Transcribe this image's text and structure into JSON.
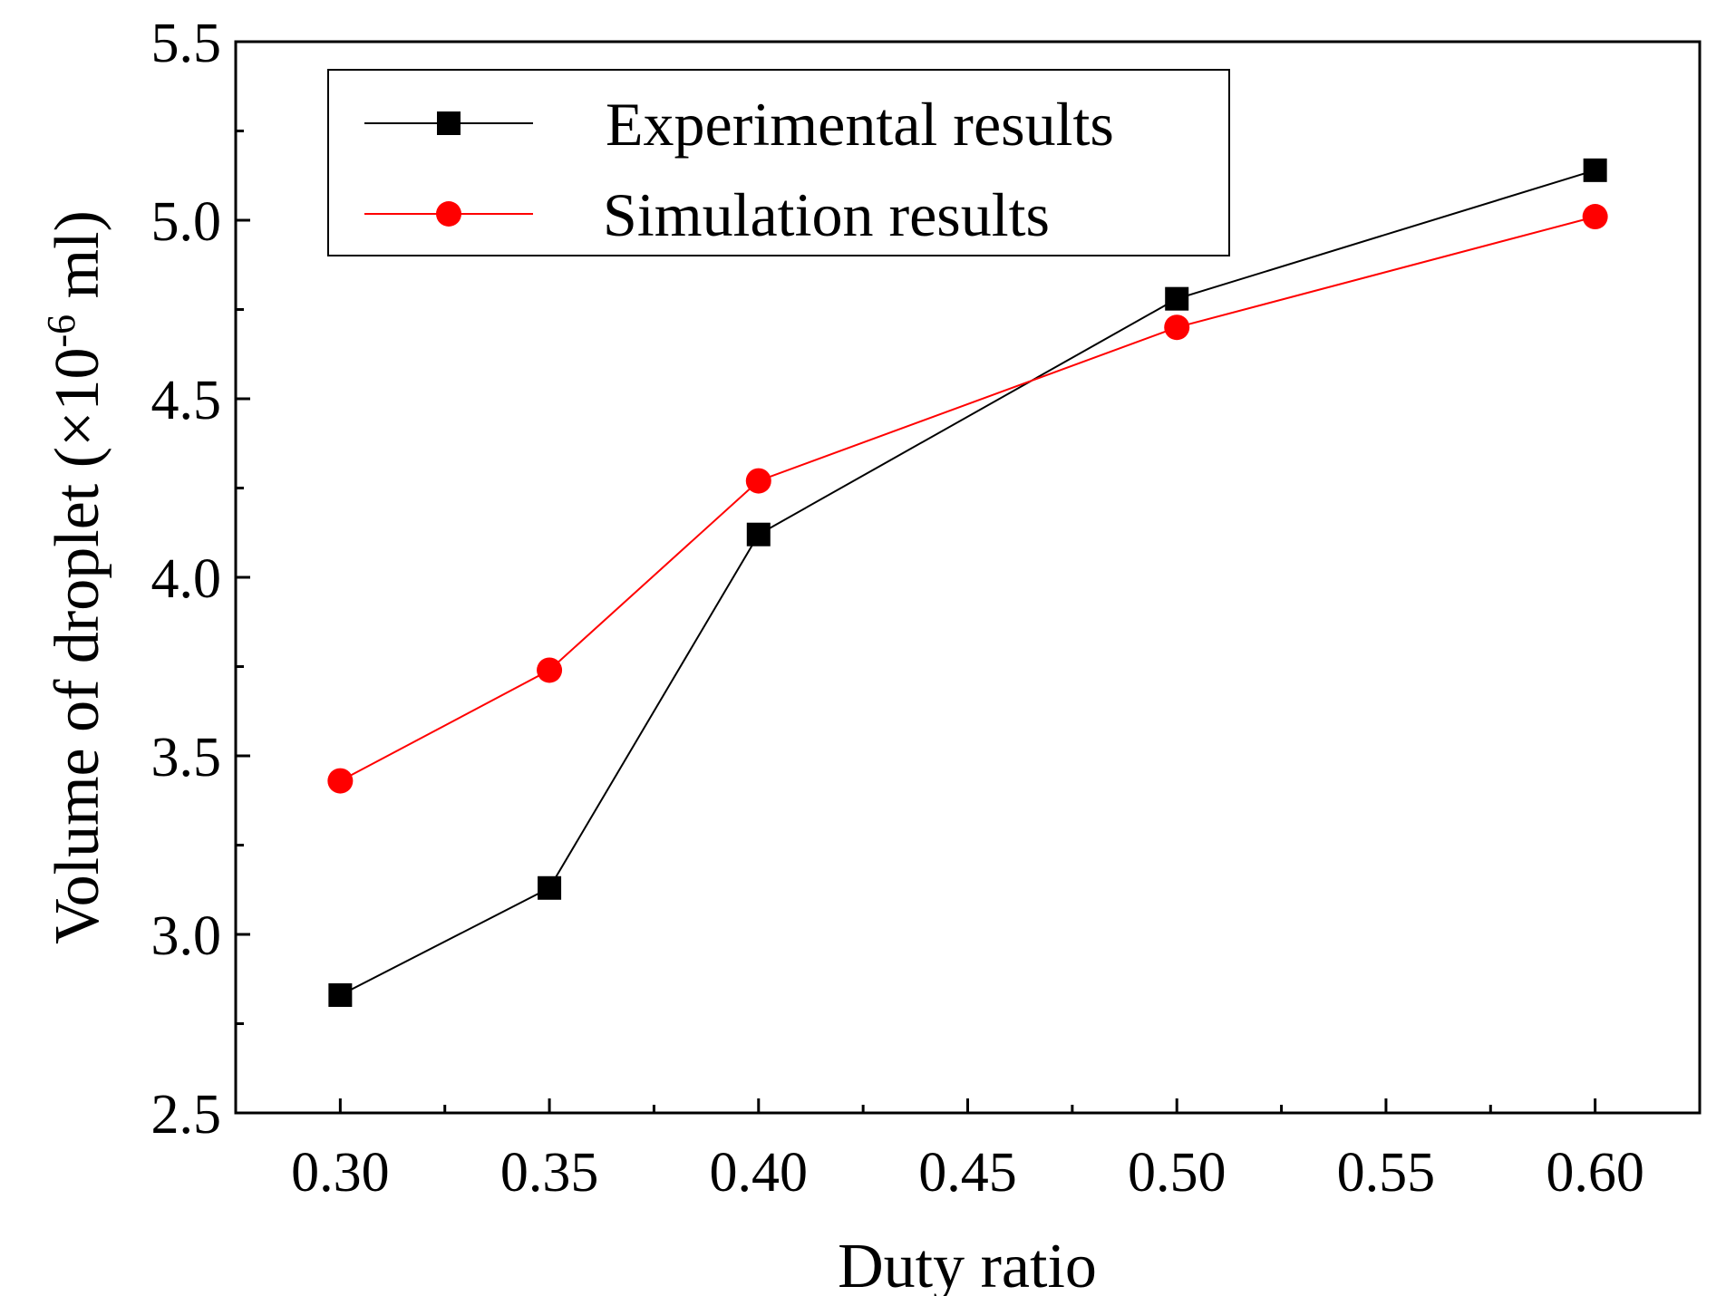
{
  "chart_data": {
    "type": "line",
    "title": "",
    "xlabel": "Duty ratio",
    "ylabel_prefix": "Volume of droplet (×10",
    "ylabel_exponent": "-6",
    "ylabel_suffix": " ml)",
    "xlim": [
      0.275,
      0.625
    ],
    "ylim": [
      2.5,
      5.5
    ],
    "x_ticks": [
      0.3,
      0.35,
      0.4,
      0.45,
      0.5,
      0.55,
      0.6
    ],
    "x_tick_labels": [
      "0.30",
      "0.35",
      "0.40",
      "0.45",
      "0.50",
      "0.55",
      "0.60"
    ],
    "x_minor_ticks": [
      0.325,
      0.375,
      0.425,
      0.475,
      0.525,
      0.575
    ],
    "y_ticks": [
      2.5,
      3.0,
      3.5,
      4.0,
      4.5,
      5.0,
      5.5
    ],
    "y_tick_labels": [
      "2.5",
      "3.0",
      "3.5",
      "4.0",
      "4.5",
      "5.0",
      "5.5"
    ],
    "y_minor_ticks": [
      2.75,
      3.25,
      3.75,
      4.25,
      4.75,
      5.25
    ],
    "grid": false,
    "legend_position": "top-left",
    "series": [
      {
        "name": "Experimental results",
        "color": "#000000",
        "marker": "square",
        "x": [
          0.3,
          0.35,
          0.4,
          0.5,
          0.6
        ],
        "y": [
          2.83,
          3.13,
          4.12,
          4.78,
          5.14
        ]
      },
      {
        "name": "Simulation results",
        "color": "#ff0000",
        "marker": "circle",
        "x": [
          0.3,
          0.35,
          0.4,
          0.5,
          0.6
        ],
        "y": [
          3.43,
          3.74,
          4.27,
          4.7,
          5.01
        ]
      }
    ]
  }
}
